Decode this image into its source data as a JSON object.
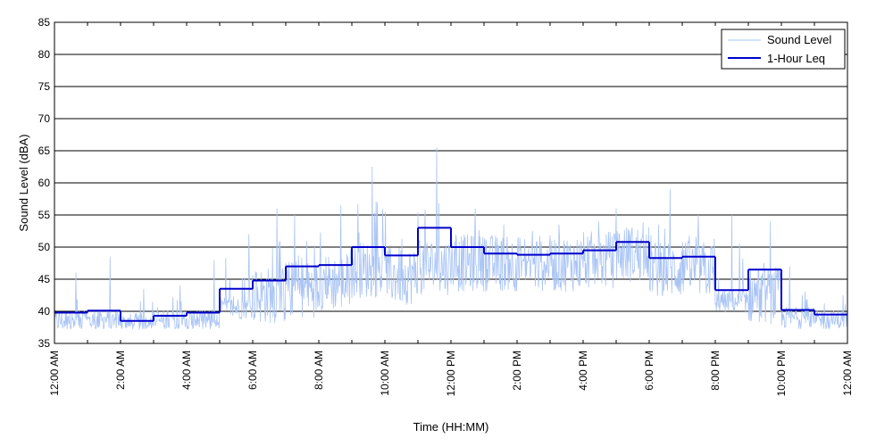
{
  "chart_data": {
    "type": "line",
    "xlabel": "Time (HH:MM)",
    "ylabel": "Sound Level (dBA)",
    "ylim": [
      35,
      85
    ],
    "xlim_hours": [
      0,
      24
    ],
    "grid": "horizontal",
    "legend_placement": "top-right",
    "x_tick_labels": [
      "12:00 AM",
      "2:00 AM",
      "4:00 AM",
      "6:00 AM",
      "8:00 AM",
      "10:00 AM",
      "12:00 PM",
      "2:00 PM",
      "4:00 PM",
      "6:00 PM",
      "8:00 PM",
      "10:00 PM",
      "12:00 AM"
    ],
    "y_ticks": [
      35,
      40,
      45,
      50,
      55,
      60,
      65,
      70,
      75,
      80,
      85
    ],
    "series": [
      {
        "name": "Sound Level",
        "color": "#a9c4f5",
        "style": "thin-line",
        "hourly_mean": [
          38.5,
          38.5,
          38.0,
          38.5,
          38.5,
          40.5,
          42.5,
          43.5,
          44.5,
          46.5,
          45.5,
          47.0,
          47.5,
          47.5,
          47.5,
          47.5,
          48.0,
          49.0,
          46.5,
          46.5,
          41.5,
          42.5,
          39.0,
          38.5
        ],
        "hourly_max": [
          46.0,
          48.5,
          43.5,
          44.0,
          48.0,
          52.0,
          56.0,
          55.0,
          56.5,
          62.5,
          55.5,
          65.5,
          56.0,
          53.5,
          52.5,
          53.5,
          54.0,
          56.0,
          59.0,
          55.0,
          55.0,
          54.0,
          47.0,
          42.5
        ]
      },
      {
        "name": "1-Hour Leq",
        "color": "#0000cc",
        "style": "step",
        "values": [
          39.8,
          40.1,
          38.5,
          39.3,
          39.8,
          43.5,
          44.8,
          47.0,
          47.2,
          50.0,
          48.7,
          53.0,
          50.0,
          49.0,
          48.8,
          49.0,
          49.5,
          50.8,
          48.3,
          48.5,
          43.3,
          46.5,
          40.2,
          39.5
        ]
      }
    ]
  }
}
